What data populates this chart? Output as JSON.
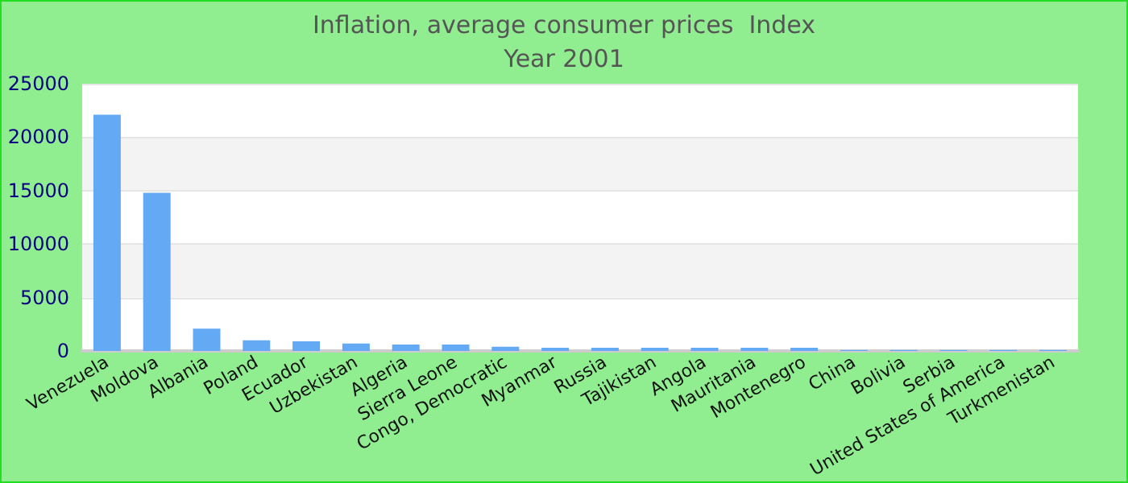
{
  "chart_data": {
    "type": "bar",
    "title": "Inflation, average consumer prices  Index",
    "subtitle": "Year 2001",
    "categories": [
      "Venezuela",
      "Moldova",
      "Albania",
      "Poland",
      "Ecuador",
      "Uzbekistan",
      "Algeria",
      "Sierra Leone",
      "Congo, Democratic",
      "Myanmar",
      "Russia",
      "Tajikistan",
      "Angola",
      "Mauritania",
      "Montenegro",
      "China",
      "Bolivia",
      "Serbia",
      "United States of America",
      "Turkmenistan"
    ],
    "values": [
      22100,
      14800,
      2100,
      1000,
      900,
      700,
      600,
      600,
      400,
      300,
      300,
      300,
      300,
      300,
      300,
      100,
      100,
      100,
      100,
      100
    ],
    "color": "#63a9f4",
    "ylim": [
      0,
      25000
    ],
    "yticks": [
      0,
      5000,
      10000,
      15000,
      20000,
      25000
    ],
    "grid": "y"
  }
}
